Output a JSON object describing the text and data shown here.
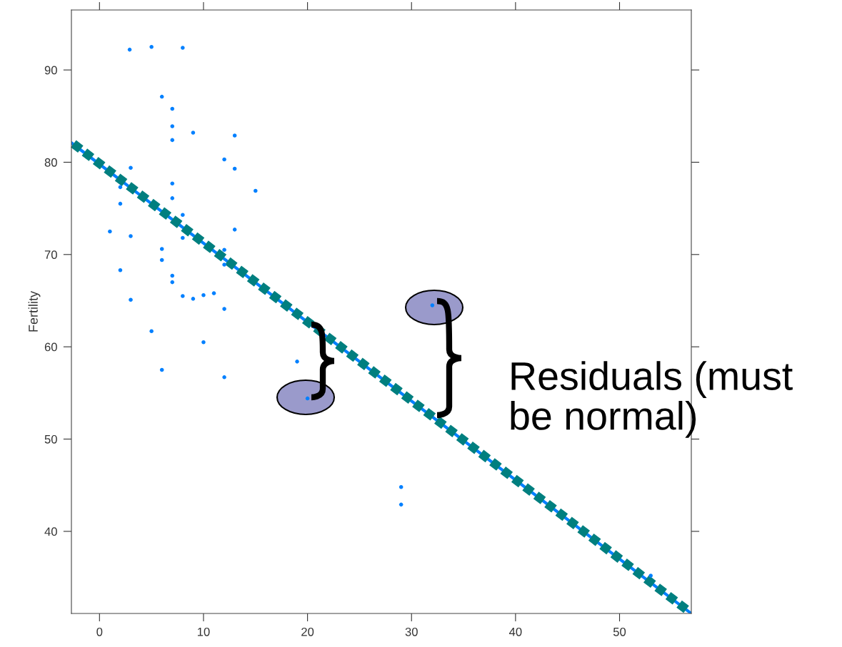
{
  "chart_data": {
    "type": "scatter",
    "ylabel": "Fertility",
    "annotations": [
      "Residuals (must\nbe normal)"
    ],
    "xlim": [
      -2.7,
      56.9
    ],
    "ylim": [
      31.1,
      96.5
    ],
    "xticks": [
      0,
      10,
      20,
      30,
      40,
      50
    ],
    "yticks": [
      40,
      50,
      60,
      70,
      80,
      90
    ],
    "grid": false,
    "series": [
      {
        "color": "#0080ff",
        "marker": "circle",
        "x": [
          2.9,
          5,
          8,
          6,
          7,
          7,
          9,
          7,
          13,
          12,
          13,
          3,
          2,
          7,
          15,
          7,
          2,
          8,
          1,
          3,
          8,
          13,
          6,
          6,
          12,
          12,
          2,
          7,
          7,
          3,
          8,
          9,
          10,
          11,
          12,
          5,
          10,
          6,
          12,
          19,
          20,
          29,
          29,
          32,
          53
        ],
        "values": [
          92.2,
          92.5,
          92.4,
          87.1,
          85.8,
          83.9,
          83.2,
          82.4,
          82.9,
          80.3,
          79.3,
          79.4,
          77.3,
          77.7,
          76.9,
          76.1,
          75.5,
          74.3,
          72.5,
          72.0,
          71.8,
          72.7,
          70.6,
          69.4,
          70.5,
          68.9,
          68.3,
          67.7,
          67.0,
          65.1,
          65.5,
          65.2,
          65.6,
          65.8,
          64.1,
          61.7,
          60.5,
          57.5,
          56.7,
          58.4,
          54.4,
          44.8,
          42.9,
          64.5,
          35.2
        ]
      },
      {
        "type": "line",
        "color": "#0080ff",
        "marker": "none",
        "line_style": "solid",
        "x": [
          -2.7,
          56.9
        ],
        "values": [
          82.1,
          31.1
        ]
      },
      {
        "type": "line",
        "color": "#007f7f",
        "marker": "none",
        "line_style": "dotted",
        "x": [
          -2.5,
          56.7
        ],
        "values": [
          82.0,
          31.3
        ]
      }
    ]
  }
}
